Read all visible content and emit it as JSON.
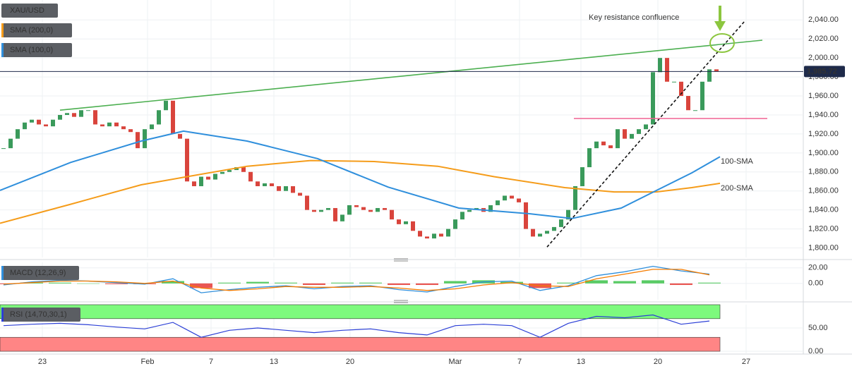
{
  "chart_data": [
    {
      "type": "candlestick",
      "xlim": [
        -0.5,
        113.3
      ],
      "xticks": [
        {
          "value": 5.5,
          "label": "23"
        },
        {
          "value": 20.4,
          "label": "Feb"
        },
        {
          "value": 29.4,
          "label": "7"
        },
        {
          "value": 38.3,
          "label": "13"
        },
        {
          "value": 49.1,
          "label": "20"
        },
        {
          "value": 64,
          "label": "Mar"
        },
        {
          "value": 73.1,
          "label": "7"
        },
        {
          "value": 81.8,
          "label": "13"
        },
        {
          "value": 92.7,
          "label": "20"
        },
        {
          "value": 105.2,
          "label": "27"
        }
      ],
      "ylim": [
        1790,
        2061
      ],
      "yticks": [
        {
          "value": 1800,
          "label": "1,800.00"
        },
        {
          "value": 1820,
          "label": "1,820.00"
        },
        {
          "value": 1840,
          "label": "1,840.00"
        },
        {
          "value": 1860,
          "label": "1,860.00"
        },
        {
          "value": 1880,
          "label": "1,880.00"
        },
        {
          "value": 1900,
          "label": "1,900.00"
        },
        {
          "value": 1920,
          "label": "1,920.00"
        },
        {
          "value": 1940,
          "label": "1,940.00"
        },
        {
          "value": 1960,
          "label": "1,960.00"
        },
        {
          "value": 1980,
          "label": "1,980.00"
        },
        {
          "value": 2000,
          "label": "2,000.00"
        },
        {
          "value": 2020,
          "label": "2,020.00"
        },
        {
          "value": 2040,
          "label": "2,040.00"
        }
      ],
      "grid": true,
      "up_color": "#3a9a5b",
      "down_color": "#d9443c",
      "series": [
        {
          "name": "XAU/USD",
          "values": [
            1905,
            1915,
            1925,
            1932,
            1935,
            1930,
            1928,
            1935,
            1940,
            1942,
            1938,
            1945,
            1945,
            1930,
            1928,
            1932,
            1928,
            1925,
            1922,
            1905,
            1925,
            1930,
            1945,
            1955,
            1920,
            1915,
            1870,
            1865,
            1875,
            1872,
            1878,
            1880,
            1882,
            1885,
            1880,
            1870,
            1865,
            1868,
            1865,
            1860,
            1865,
            1858,
            1855,
            1840,
            1838,
            1840,
            1842,
            1828,
            1835,
            1845,
            1843,
            1840,
            1838,
            1842,
            1840,
            1830,
            1825,
            1828,
            1818,
            1812,
            1810,
            1815,
            1812,
            1820,
            1830,
            1838,
            1840,
            1842,
            1838,
            1845,
            1850,
            1855,
            1852,
            1848,
            1820,
            1812,
            1815,
            1818,
            1822,
            1830,
            1840,
            1865,
            1885,
            1905,
            1912,
            1908,
            1905,
            1925,
            1915,
            1920,
            1925,
            1930,
            1985,
            2000,
            1975,
            1975,
            1960,
            1945,
            1945,
            1975,
            1988,
            1986
          ]
        },
        {
          "name": "SMA (200,0)",
          "color": "#f59c1a",
          "x": [
            -0.5,
            9.5,
            19.5,
            26,
            34.5,
            43.5,
            52.5,
            61.5,
            69.5,
            79.5,
            86.5,
            92.5,
            97.5,
            101.5
          ],
          "values": [
            1826,
            1846,
            1866.5,
            1875,
            1886,
            1892,
            1891,
            1886,
            1875,
            1863.5,
            1859,
            1859,
            1863.5,
            1868
          ]
        },
        {
          "name": "SMA (100,0)",
          "color": "#2f8fdc",
          "x": [
            -0.5,
            9.5,
            19.5,
            25.5,
            34.5,
            44.5,
            54.5,
            64.5,
            74.5,
            80.5,
            87.5,
            92.5,
            97.5,
            101.5
          ],
          "values": [
            1860.5,
            1890,
            1912.5,
            1923,
            1912.5,
            1894,
            1864,
            1842,
            1836,
            1831,
            1842,
            1860.5,
            1879,
            1896
          ]
        }
      ],
      "trendlines": [
        {
          "color": "#4caf50",
          "x": [
            8,
            107.5
          ],
          "values": [
            1945,
            2018.7
          ]
        },
        {
          "color": "#111111",
          "dashed": true,
          "x": [
            77,
            105
          ],
          "values": [
            1801,
            2038.7
          ]
        },
        {
          "color": "#f06292",
          "x": [
            80.8,
            108.2
          ],
          "values": [
            1936.3,
            1936.3
          ]
        }
      ],
      "last_price": {
        "value": 1985.72,
        "label": "1,985.72"
      },
      "annotations": [
        "Key resistance confluence",
        "100-SMA",
        "200-SMA"
      ]
    },
    {
      "type": "macd",
      "title": "MACD (12,26,9)",
      "x": [
        0,
        4,
        8,
        12,
        16,
        20,
        24,
        28,
        32,
        36,
        40,
        44,
        48,
        52,
        56,
        60,
        64,
        68,
        72,
        76,
        80,
        84,
        88,
        92,
        96,
        100
      ],
      "ylim": [
        -21,
        27
      ],
      "yticks": [
        {
          "value": 20,
          "label": "20.00"
        },
        {
          "value": 0,
          "label": "0.00"
        }
      ],
      "series": [
        {
          "color": "#2f8fdc",
          "values": [
            -2,
            2,
            4,
            3,
            1,
            -1,
            6,
            -12,
            -8,
            -5,
            -3,
            -7,
            -4,
            -3,
            -8,
            -11,
            -4,
            2,
            3,
            -9,
            -3,
            10,
            15,
            22,
            16,
            12
          ]
        },
        {
          "color": "#f57c00",
          "values": [
            -1,
            1,
            3,
            3,
            2,
            0,
            3,
            -6,
            -9,
            -7,
            -4,
            -5,
            -5,
            -4,
            -6,
            -9,
            -7,
            -2,
            1,
            -3,
            -4,
            6,
            12,
            18,
            18,
            11
          ]
        }
      ],
      "histogram": [
        -1,
        1,
        1,
        0,
        -1,
        -1,
        3,
        -6,
        1,
        2,
        1,
        -2,
        1,
        1,
        -2,
        -2,
        3,
        4,
        2,
        -6,
        1,
        4,
        3,
        4,
        -2,
        1
      ],
      "up_color": "#3cc24a",
      "down_color": "#e53935"
    },
    {
      "type": "rsi",
      "title": "RSI (14,70,30,1)",
      "x": [
        0,
        4,
        8,
        12,
        16,
        20,
        24,
        28,
        32,
        36,
        40,
        44,
        48,
        52,
        56,
        60,
        64,
        68,
        72,
        76,
        80,
        84,
        88,
        92,
        96,
        100
      ],
      "ylim": [
        -6,
        100
      ],
      "yticks": [
        {
          "value": 50,
          "label": "50.00"
        },
        {
          "value": 0,
          "label": "0.00"
        }
      ],
      "bands": [
        {
          "from": 70,
          "to": 100,
          "color": "#7dfa7d"
        },
        {
          "from": 0,
          "to": 30,
          "color": "#ff8585"
        }
      ],
      "series": [
        {
          "color": "#2b3fd6",
          "values": [
            55,
            58,
            60,
            57,
            52,
            48,
            62,
            30,
            45,
            50,
            45,
            40,
            45,
            48,
            40,
            35,
            55,
            58,
            55,
            30,
            60,
            75,
            72,
            78,
            58,
            65
          ]
        }
      ]
    }
  ]
}
